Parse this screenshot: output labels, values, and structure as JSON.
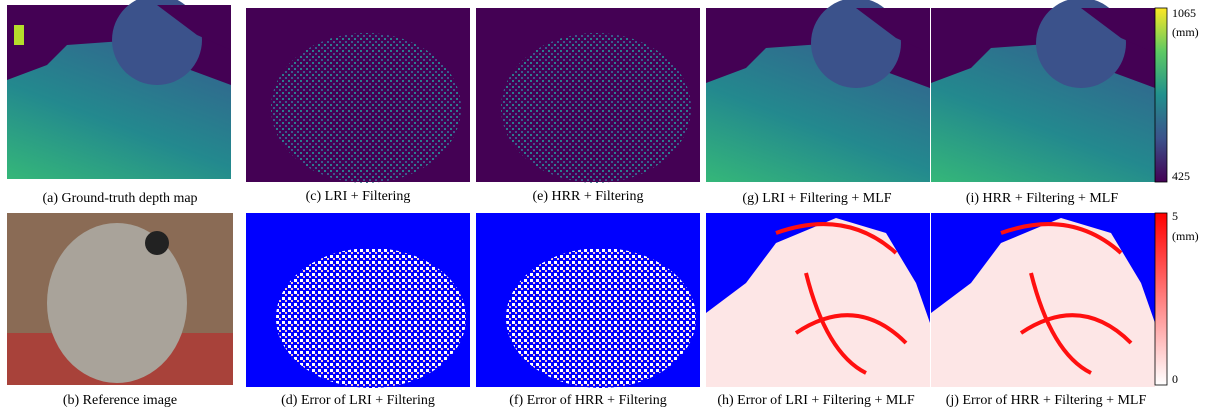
{
  "panels": [
    {
      "caption": "(a) Ground-truth depth map"
    },
    {
      "caption": "(b) Reference image"
    },
    {
      "caption": "(c) LRI + Filtering"
    },
    {
      "caption": "(d) Error of LRI + Filtering"
    },
    {
      "caption": "(e) HRR + Filtering"
    },
    {
      "caption": "(f) Error of HRR + Filtering"
    },
    {
      "caption": "(g) LRI + Filtering + MLF"
    },
    {
      "caption": "(h) Error of LRI + Filtering + MLF"
    },
    {
      "caption": "(i) HRR + Filtering + MLF"
    },
    {
      "caption": "(j) Error of HRR + Filtering + MLF"
    }
  ],
  "colorbars": [
    {
      "max_label": "1065",
      "unit": "(mm)",
      "min_label": "425"
    },
    {
      "max_label": "5",
      "unit": "(mm)",
      "min_label": "0"
    }
  ]
}
